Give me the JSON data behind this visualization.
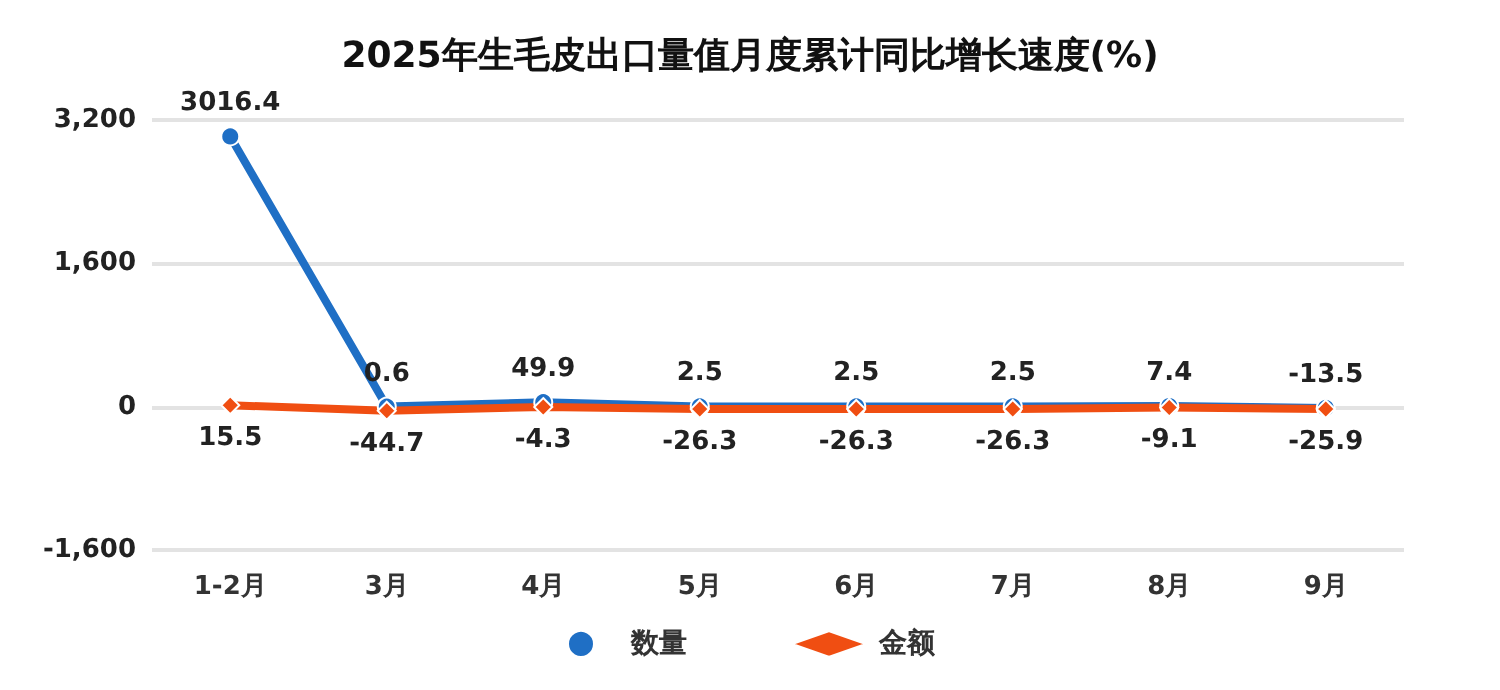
{
  "chart_data": {
    "type": "line",
    "title": "2025年生毛皮出口量值月度累计同比增长速度(%)",
    "categories": [
      "1-2月",
      "3月",
      "4月",
      "5月",
      "6月",
      "7月",
      "8月",
      "9月"
    ],
    "series": [
      {
        "name": "数量",
        "color": "#1f6fc5",
        "marker": "circle",
        "values": [
          3016.4,
          0.6,
          49.9,
          2.5,
          2.5,
          2.5,
          7.4,
          -13.5
        ]
      },
      {
        "name": "金额",
        "color": "#f04e12",
        "marker": "diamond",
        "values": [
          15.5,
          -44.7,
          -4.3,
          -26.3,
          -26.3,
          -26.3,
          -9.1,
          -25.9
        ]
      }
    ],
    "ylim": [
      -1600,
      3200
    ],
    "yticks": [
      {
        "value": -1600,
        "label": "-1,600"
      },
      0,
      {
        "value": 1600,
        "label": "1,600"
      },
      {
        "value": 3200,
        "label": "3,200"
      }
    ],
    "grid": "y",
    "legend": "bottom",
    "data_labels": true,
    "line_style": "solid"
  }
}
